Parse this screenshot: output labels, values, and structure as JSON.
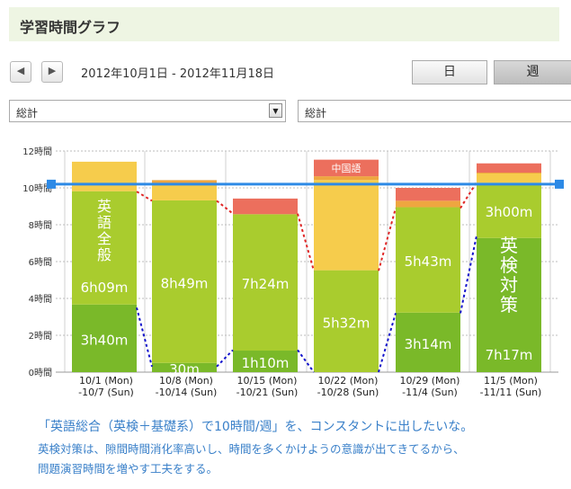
{
  "header": {
    "title": "学習時間グラフ"
  },
  "nav": {
    "prev": "◀",
    "next": "▶",
    "date_range": "2012年10月1日 - 2012年11月18日"
  },
  "tabs": {
    "day": "日",
    "week": "週"
  },
  "filters": {
    "left_value": "総計",
    "right_value": "総計"
  },
  "colors": {
    "dark_green": "#7ab929",
    "light_green": "#a9cc2e",
    "yellow": "#f6cc4c",
    "orange": "#eea640",
    "red": "#ec6f5d",
    "goal_line": "#2d8ae6",
    "red_dotted": "#e02626",
    "blue_dotted": "#1414cc"
  },
  "chart_data": {
    "type": "bar",
    "stacked": true,
    "ylim": [
      0,
      12
    ],
    "y_ticks": [
      "0時間",
      "2時間",
      "4時間",
      "6時間",
      "8時間",
      "10時間",
      "12時間"
    ],
    "categories": [
      [
        "10/1 (Mon)",
        "-10/7 (Sun)"
      ],
      [
        "10/8 (Mon)",
        "-10/14 (Sun)"
      ],
      [
        "10/15 (Mon)",
        "-10/21 (Sun)"
      ],
      [
        "10/22 (Mon)",
        "-10/28 (Sun)"
      ],
      [
        "10/29 (Mon)",
        "-11/4 (Sun)"
      ],
      [
        "11/5 (Mon)",
        "-11/11 (Sun)"
      ]
    ],
    "series": [
      {
        "name": "英検対策",
        "color_key": "dark_green",
        "values": [
          3.67,
          0.5,
          1.17,
          0,
          3.23,
          7.28
        ],
        "labels": [
          "3h40m",
          "30m",
          "1h10m",
          "",
          "3h14m",
          "7h17m"
        ]
      },
      {
        "name": "英語全般",
        "color_key": "light_green",
        "values": [
          6.15,
          8.82,
          7.4,
          5.53,
          5.72,
          3.0
        ],
        "labels": [
          "6h09m",
          "8h49m",
          "7h24m",
          "5h32m",
          "5h43m",
          "3h00m"
        ]
      },
      {
        "name": "",
        "color_key": "yellow",
        "values": [
          1.6,
          0.85,
          0,
          4.9,
          0,
          0.5
        ],
        "labels": [
          "",
          "",
          "",
          "",
          "",
          ""
        ]
      },
      {
        "name": "",
        "color_key": "orange",
        "values": [
          0,
          0.25,
          0,
          0.2,
          0.35,
          0.05
        ],
        "labels": [
          "",
          "",
          "",
          "",
          "",
          ""
        ]
      },
      {
        "name": "中国語",
        "color_key": "red",
        "values": [
          0,
          0,
          0.85,
          0.9,
          0.7,
          0.5
        ],
        "labels": [
          "",
          "",
          "",
          "中国語",
          "",
          ""
        ]
      }
    ],
    "bar_big_text": [
      {
        "index": 0,
        "text": "英語全般",
        "series": 1
      },
      {
        "index": 5,
        "text": "英検対策",
        "series": 0
      }
    ],
    "goal_line": {
      "value": 10.2
    },
    "red_dotted": [
      9.8,
      9.3,
      8.6,
      5.5,
      8.9,
      10.3
    ],
    "blue_dotted": [
      3.5,
      0.3,
      1.2,
      0,
      3.2,
      7.4
    ]
  },
  "notes": {
    "line1": "「英語総合（英検＋基礎系）で10時間/週」を、コンスタントに出したいな。",
    "line2": "英検対策は、隙間時間消化率高いし、時間を多くかけようの意識が出てきてるから、",
    "line3": "問題演習時間を増やす工夫をする。"
  }
}
